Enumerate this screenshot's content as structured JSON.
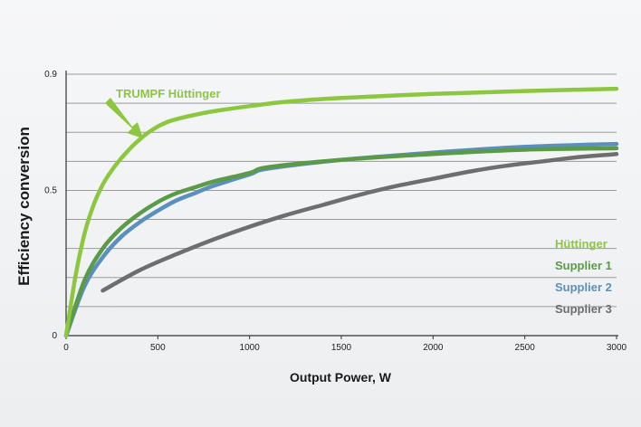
{
  "chart_data": {
    "type": "line",
    "xlabel": "Output Power, W",
    "ylabel": "Efficiency conversion",
    "xlim": [
      0,
      3000
    ],
    "ylim": [
      0,
      0.9
    ],
    "x_ticks": [
      "0",
      "500",
      "1000",
      "1500",
      "2000",
      "2500",
      "3000"
    ],
    "y_ticks": [
      "0",
      "0.5",
      "0.9"
    ],
    "grid": "horizontal",
    "legend_position": "right",
    "series": [
      {
        "name": "Hüttinger",
        "color": "#8dc63f",
        "x": [
          0,
          50,
          100,
          150,
          200,
          250,
          300,
          350,
          400,
          450,
          500,
          550,
          600,
          700,
          800,
          1000,
          1200,
          1500,
          2000,
          2500,
          3000
        ],
        "y": [
          0,
          0.2,
          0.35,
          0.45,
          0.52,
          0.57,
          0.61,
          0.645,
          0.675,
          0.7,
          0.72,
          0.735,
          0.745,
          0.76,
          0.772,
          0.79,
          0.805,
          0.818,
          0.832,
          0.842,
          0.85
        ]
      },
      {
        "name": "Supplier 1",
        "color": "#5b9a46",
        "x": [
          0,
          100,
          200,
          300,
          400,
          500,
          600,
          700,
          800,
          1000,
          1100,
          1500,
          2000,
          2500,
          3000
        ],
        "y": [
          0,
          0.19,
          0.3,
          0.37,
          0.42,
          0.46,
          0.49,
          0.51,
          0.53,
          0.56,
          0.58,
          0.605,
          0.625,
          0.64,
          0.645
        ]
      },
      {
        "name": "Supplier 2",
        "color": "#5b8fbf",
        "x": [
          0,
          100,
          200,
          300,
          400,
          500,
          600,
          700,
          800,
          1000,
          1100,
          1500,
          2000,
          2500,
          3000
        ],
        "y": [
          0,
          0.17,
          0.27,
          0.34,
          0.39,
          0.43,
          0.465,
          0.49,
          0.515,
          0.555,
          0.575,
          0.605,
          0.63,
          0.65,
          0.66
        ]
      },
      {
        "name": "Supplier 3",
        "color": "#6e6e6e",
        "x": [
          200,
          400,
          600,
          800,
          1000,
          1200,
          1400,
          1600,
          1800,
          2000,
          2200,
          2400,
          2600,
          2800,
          3000
        ],
        "y": [
          0.155,
          0.225,
          0.28,
          0.33,
          0.375,
          0.415,
          0.45,
          0.485,
          0.515,
          0.54,
          0.565,
          0.585,
          0.6,
          0.615,
          0.625
        ]
      }
    ],
    "annotation": {
      "text": "TRUMPF Hüttinger",
      "color": "#8dc63f"
    }
  }
}
